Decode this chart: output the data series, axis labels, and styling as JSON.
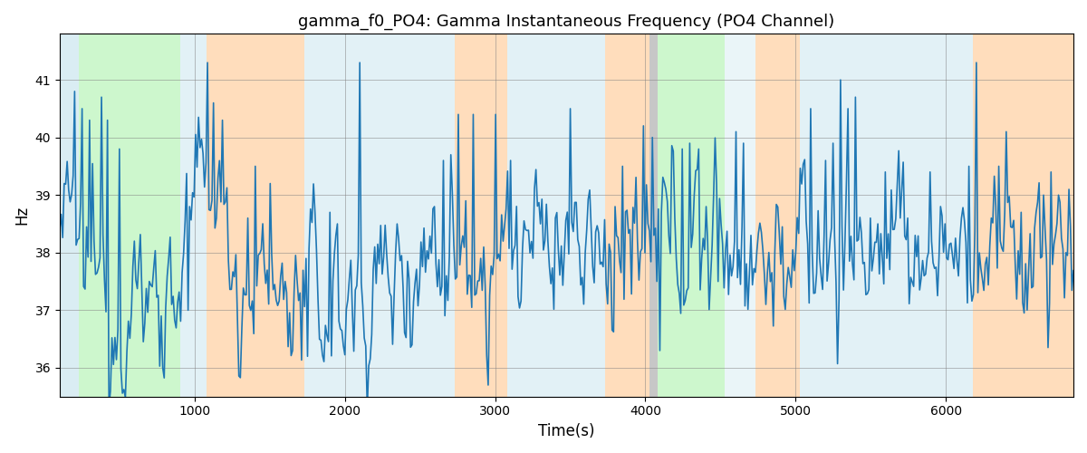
{
  "title": "gamma_f0_PO4: Gamma Instantaneous Frequency (PO4 Channel)",
  "xlabel": "Time(s)",
  "ylabel": "Hz",
  "xlim": [
    100,
    6850
  ],
  "ylim": [
    35.5,
    41.8
  ],
  "yticks": [
    36,
    37,
    38,
    39,
    40,
    41
  ],
  "xticks": [
    1000,
    2000,
    3000,
    4000,
    5000,
    6000
  ],
  "line_color": "#1f77b4",
  "line_width": 1.2,
  "bg_bands": [
    {
      "xmin": 100,
      "xmax": 230,
      "color": "#add8e6",
      "alpha": 0.45
    },
    {
      "xmin": 230,
      "xmax": 900,
      "color": "#90ee90",
      "alpha": 0.45
    },
    {
      "xmin": 900,
      "xmax": 1080,
      "color": "#add8e6",
      "alpha": 0.35
    },
    {
      "xmin": 1080,
      "xmax": 1730,
      "color": "#ffa040",
      "alpha": 0.35
    },
    {
      "xmin": 1730,
      "xmax": 2230,
      "color": "#add8e6",
      "alpha": 0.35
    },
    {
      "xmin": 2230,
      "xmax": 2730,
      "color": "#add8e6",
      "alpha": 0.35
    },
    {
      "xmin": 2730,
      "xmax": 3080,
      "color": "#ffa040",
      "alpha": 0.35
    },
    {
      "xmin": 3080,
      "xmax": 3730,
      "color": "#add8e6",
      "alpha": 0.35
    },
    {
      "xmin": 3730,
      "xmax": 4030,
      "color": "#ffa040",
      "alpha": 0.35
    },
    {
      "xmin": 4030,
      "xmax": 4080,
      "color": "#909090",
      "alpha": 0.5
    },
    {
      "xmin": 4080,
      "xmax": 4530,
      "color": "#90ee90",
      "alpha": 0.45
    },
    {
      "xmin": 4530,
      "xmax": 4730,
      "color": "#add8e6",
      "alpha": 0.25
    },
    {
      "xmin": 4730,
      "xmax": 5030,
      "color": "#ffa040",
      "alpha": 0.35
    },
    {
      "xmin": 5030,
      "xmax": 6180,
      "color": "#add8e6",
      "alpha": 0.35
    },
    {
      "xmin": 6180,
      "xmax": 6850,
      "color": "#ffa040",
      "alpha": 0.35
    }
  ],
  "n_points": 680,
  "x_start": 100,
  "x_end": 6850,
  "base_freq": 38.2,
  "title_fontsize": 13,
  "figsize": [
    12.0,
    5.0
  ],
  "dpi": 100
}
